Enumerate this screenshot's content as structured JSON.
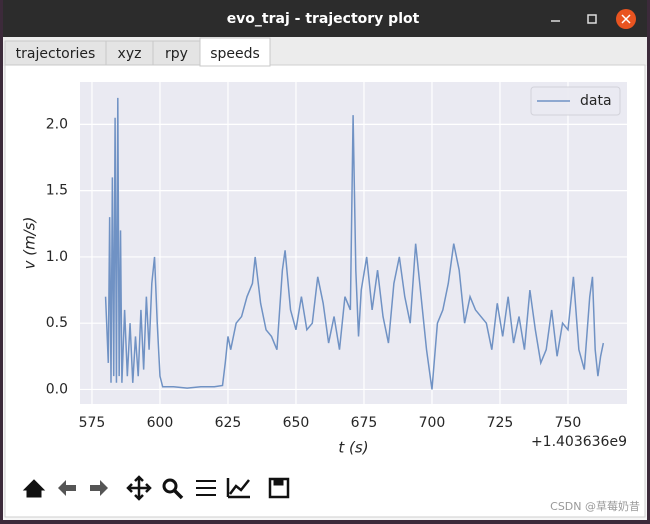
{
  "window": {
    "title": "evo_traj - trajectory plot"
  },
  "tabs": [
    "trajectories",
    "xyz",
    "rpy",
    "speeds"
  ],
  "chart_data": {
    "type": "line",
    "xlabel": "t (s)",
    "ylabel": "v (m/s)",
    "x_offset_label": "+1.403636e9",
    "x": [
      580,
      581,
      581.5,
      582,
      582.5,
      583,
      583.5,
      584,
      584.5,
      585,
      585.5,
      586,
      587,
      588,
      589,
      590,
      591,
      592,
      593,
      594,
      595,
      596,
      597,
      598,
      599,
      600,
      601,
      605,
      610,
      615,
      620,
      623,
      624,
      625,
      626,
      628,
      630,
      632,
      634,
      635,
      637,
      639,
      641,
      643,
      645,
      646,
      648,
      650,
      652,
      654,
      656,
      658,
      660,
      662,
      664,
      666,
      668,
      670,
      671,
      672,
      673,
      674,
      676,
      678,
      680,
      682,
      684,
      686,
      688,
      690,
      692,
      694,
      696,
      698,
      700,
      702,
      704,
      706,
      708,
      710,
      712,
      714,
      716,
      718,
      720,
      722,
      724,
      726,
      728,
      730,
      732,
      734,
      736,
      738,
      740,
      742,
      744,
      746,
      748,
      750,
      752,
      754,
      756,
      758,
      759,
      760,
      761,
      762,
      763
    ],
    "series": [
      {
        "name": "data",
        "color": "#7092c4",
        "values": [
          0.7,
          0.2,
          1.3,
          0.05,
          1.6,
          0.1,
          2.05,
          0.05,
          2.2,
          0.1,
          1.2,
          0.05,
          0.6,
          0.1,
          0.5,
          0.05,
          0.4,
          0.1,
          0.6,
          0.15,
          0.7,
          0.3,
          0.8,
          1.0,
          0.5,
          0.1,
          0.02,
          0.02,
          0.01,
          0.02,
          0.02,
          0.03,
          0.2,
          0.4,
          0.3,
          0.5,
          0.55,
          0.7,
          0.8,
          1.0,
          0.65,
          0.45,
          0.4,
          0.3,
          0.9,
          1.05,
          0.6,
          0.45,
          0.7,
          0.45,
          0.5,
          0.85,
          0.65,
          0.35,
          0.55,
          0.3,
          0.7,
          0.6,
          2.07,
          0.9,
          0.4,
          0.75,
          1.0,
          0.6,
          0.9,
          0.55,
          0.35,
          0.8,
          1.0,
          0.7,
          0.5,
          1.1,
          0.7,
          0.3,
          0.0,
          0.5,
          0.6,
          0.8,
          1.1,
          0.9,
          0.5,
          0.7,
          0.6,
          0.55,
          0.5,
          0.3,
          0.65,
          0.4,
          0.7,
          0.35,
          0.55,
          0.3,
          0.75,
          0.45,
          0.2,
          0.3,
          0.6,
          0.25,
          0.5,
          0.45,
          0.85,
          0.3,
          0.15,
          0.7,
          0.85,
          0.3,
          0.1,
          0.25,
          0.35
        ]
      }
    ],
    "xlim": [
      570.6,
      771.7
    ],
    "xticks": [
      575,
      600,
      625,
      650,
      675,
      700,
      725,
      750
    ],
    "ylim": [
      -0.11,
      2.32
    ],
    "yticks": [
      {
        "value": 0,
        "label": "0.0"
      },
      {
        "value": 0.5,
        "label": "0.5"
      },
      {
        "value": 1,
        "label": "1.0"
      },
      {
        "value": 1.5,
        "label": "1.5"
      },
      {
        "value": 2,
        "label": "2.0"
      }
    ],
    "grid": true,
    "legend": "upper right"
  },
  "watermark": "CSDN @草莓奶昔"
}
